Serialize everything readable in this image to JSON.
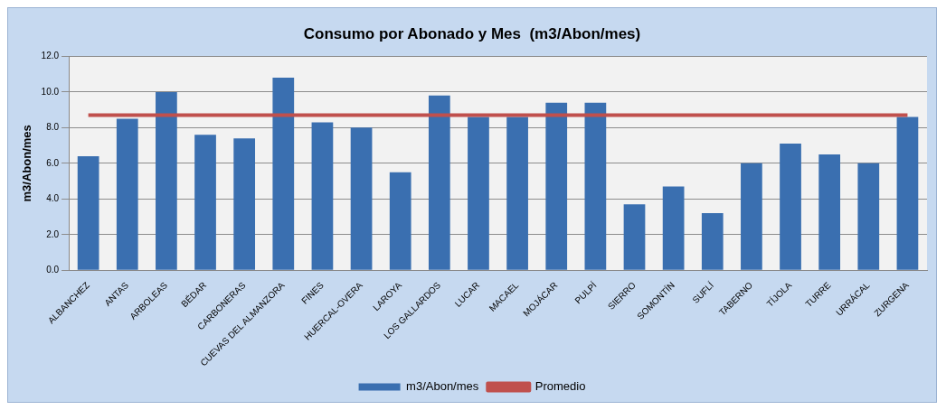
{
  "chart_data": {
    "type": "bar",
    "title": "Consumo por Abonado y Mes  (m3/Abon/mes)",
    "ylabel": "m3/Abon/mes",
    "categories": [
      "ALBANCHEZ",
      "ANTAS",
      "ARBOLEAS",
      "BÉDAR",
      "CARBONERAS",
      "CUEVAS DEL ALMANZORA",
      "FINES",
      "HUERCAL-OVERA",
      "LAROYA",
      "LOS GALLARDOS",
      "LUCAR",
      "MACAEL",
      "MOJÁCAR",
      "PULPÍ",
      "SIERRO",
      "SOMONTÍN",
      "SUFLÍ",
      "TABERNO",
      "TÍJOLA",
      "TURRE",
      "URRÁCAL",
      "ZURGENA"
    ],
    "series": [
      {
        "name": "m3/Abon/mes",
        "color": "#3a6fb0",
        "values": [
          6.4,
          8.5,
          10.0,
          7.6,
          7.4,
          10.8,
          8.3,
          8.0,
          5.5,
          9.8,
          8.6,
          8.6,
          9.4,
          9.4,
          3.7,
          4.7,
          3.2,
          6.0,
          7.1,
          6.5,
          6.0,
          8.6
        ]
      },
      {
        "name": "Promedio",
        "type": "line",
        "color": "#c0504d",
        "values": [
          8.7,
          8.7,
          8.7,
          8.7,
          8.7,
          8.7,
          8.7,
          8.7,
          8.7,
          8.7,
          8.7,
          8.7,
          8.7,
          8.7,
          8.7,
          8.7,
          8.7,
          8.7,
          8.7,
          8.7,
          8.7,
          8.7
        ]
      }
    ],
    "ylim": [
      0,
      12
    ],
    "yticks": [
      {
        "value": 0,
        "label": "0.0"
      },
      {
        "value": 2,
        "label": "2.0"
      },
      {
        "value": 4,
        "label": "4.0"
      },
      {
        "value": 6,
        "label": "6.0"
      },
      {
        "value": 8,
        "label": "8.0"
      },
      {
        "value": 10,
        "label": "10.0"
      },
      {
        "value": 12,
        "label": "12.0"
      }
    ],
    "grid": "y",
    "legend": "bottom",
    "marker": "none"
  }
}
